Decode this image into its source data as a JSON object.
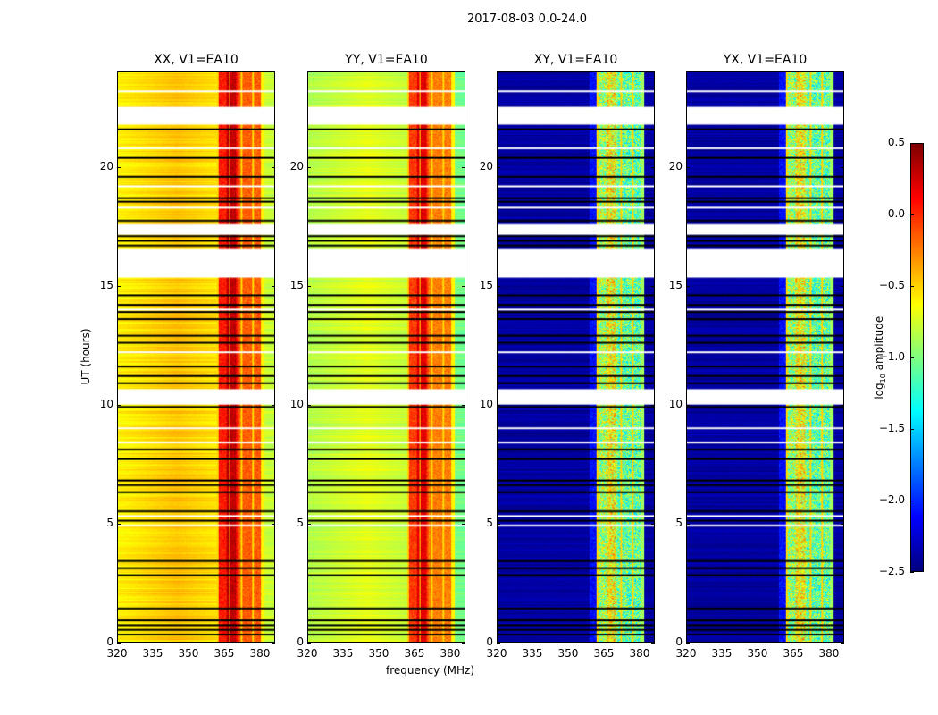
{
  "chart_data": {
    "type": "heatmap",
    "title": "2017-08-03 0.0-24.0",
    "xlabel": "frequency (MHz)",
    "ylabel": "UT (hours)",
    "xlim": [
      320,
      386.4
    ],
    "ylim": [
      0,
      24
    ],
    "xticks": [
      320,
      335,
      350,
      365,
      380
    ],
    "yticks": [
      0,
      5,
      10,
      15,
      20
    ],
    "panels": [
      {
        "title": "XX, V1=EA10",
        "base": -0.55,
        "band_level": 0.05
      },
      {
        "title": "YY, V1=EA10",
        "base": -0.8,
        "band_level": -0.05
      },
      {
        "title": "XY, V1=EA10",
        "base": -2.4,
        "band_level": -0.9
      },
      {
        "title": "YX, V1=EA10",
        "base": -2.4,
        "band_level": -0.9
      }
    ],
    "band_mhz": [
      362,
      382
    ],
    "flagged_hours": [
      [
        21.8,
        22.55
      ],
      [
        17.15,
        17.6
      ],
      [
        15.35,
        16.55
      ],
      [
        10.0,
        10.65
      ]
    ],
    "black_line_hours": [
      21.6,
      20.4,
      19.6,
      18.7,
      18.55,
      17.75,
      17.1,
      16.9,
      16.7,
      14.6,
      14.2,
      13.9,
      13.6,
      12.9,
      12.6,
      11.6,
      11.2,
      10.9,
      9.9,
      8.1,
      7.7,
      6.8,
      6.6,
      6.3,
      5.5,
      5.1,
      3.4,
      3.1,
      2.8,
      1.4,
      0.9,
      0.7,
      0.5,
      0.3
    ],
    "white_line_hours": [
      23.2,
      20.8,
      19.2,
      18.3,
      9.0,
      8.4,
      5.3,
      4.9,
      14.0,
      12.2
    ],
    "colorbar": {
      "label": "log10 amplitude",
      "range": [
        -2.5,
        0.5
      ],
      "ticks": [
        "0.5",
        "0.0",
        "−0.5",
        "−1.0",
        "−1.5",
        "−2.0",
        "−2.5"
      ],
      "tick_values": [
        0.5,
        0.0,
        -0.5,
        -1.0,
        -1.5,
        -2.0,
        -2.5
      ],
      "colormap": "jet"
    }
  }
}
